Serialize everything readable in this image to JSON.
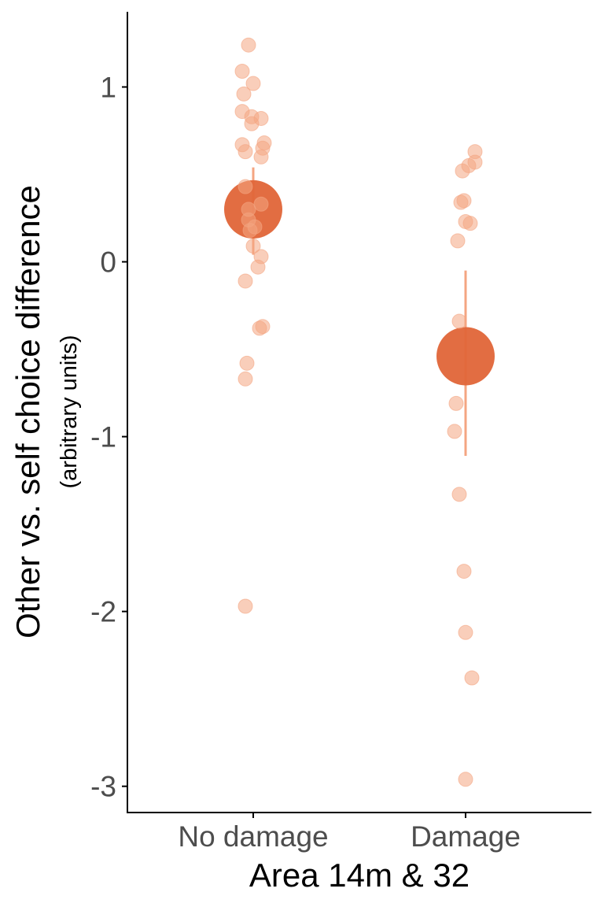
{
  "chart_data": {
    "type": "scatter",
    "xlabel": "Area 14m & 32",
    "ylabel": "Other vs. self choice difference",
    "ylabel_sub": "(arbitrary units)",
    "categories": [
      "No damage",
      "Damage"
    ],
    "ylim": [
      -3.15,
      1.43
    ],
    "yticks": [
      1,
      0,
      -1,
      -2,
      -3
    ],
    "ytick_labels": [
      "1",
      "0",
      "-1",
      "-2",
      "-3"
    ],
    "grid": false,
    "colors": {
      "points": "#f4a582",
      "mean": "#e06538",
      "errorbar": "#f4a582",
      "axis": "#000000"
    },
    "groups": [
      {
        "category": "No damage",
        "mean": 0.3,
        "ci": [
          0.04,
          0.54
        ],
        "points": [
          {
            "x": -0.03,
            "y": 1.24
          },
          {
            "x": -0.07,
            "y": 1.09
          },
          {
            "x": 0.0,
            "y": 1.02
          },
          {
            "x": -0.06,
            "y": 0.96
          },
          {
            "x": -0.07,
            "y": 0.86
          },
          {
            "x": -0.01,
            "y": 0.83
          },
          {
            "x": 0.05,
            "y": 0.82
          },
          {
            "x": -0.01,
            "y": 0.79
          },
          {
            "x": -0.07,
            "y": 0.67
          },
          {
            "x": 0.07,
            "y": 0.68
          },
          {
            "x": 0.06,
            "y": 0.65
          },
          {
            "x": -0.05,
            "y": 0.63
          },
          {
            "x": 0.05,
            "y": 0.6
          },
          {
            "x": -0.05,
            "y": 0.43
          },
          {
            "x": 0.05,
            "y": 0.33
          },
          {
            "x": -0.03,
            "y": 0.3
          },
          {
            "x": -0.03,
            "y": 0.24
          },
          {
            "x": -0.02,
            "y": 0.18
          },
          {
            "x": 0.01,
            "y": 0.2
          },
          {
            "x": 0.0,
            "y": 0.09
          },
          {
            "x": 0.05,
            "y": 0.03
          },
          {
            "x": 0.03,
            "y": -0.03
          },
          {
            "x": -0.05,
            "y": -0.11
          },
          {
            "x": 0.06,
            "y": -0.37
          },
          {
            "x": 0.04,
            "y": -0.38
          },
          {
            "x": -0.04,
            "y": -0.58
          },
          {
            "x": -0.05,
            "y": -0.67
          },
          {
            "x": -0.05,
            "y": -1.97
          }
        ]
      },
      {
        "category": "Damage",
        "mean": -0.54,
        "ci": [
          -1.11,
          -0.05
        ],
        "points": [
          {
            "x": 0.06,
            "y": 0.63
          },
          {
            "x": -0.02,
            "y": 0.52
          },
          {
            "x": 0.02,
            "y": 0.55
          },
          {
            "x": 0.06,
            "y": 0.57
          },
          {
            "x": -0.03,
            "y": 0.34
          },
          {
            "x": -0.01,
            "y": 0.35
          },
          {
            "x": 0.0,
            "y": 0.23
          },
          {
            "x": 0.03,
            "y": 0.22
          },
          {
            "x": -0.05,
            "y": 0.12
          },
          {
            "x": -0.04,
            "y": -0.34
          },
          {
            "x": -0.06,
            "y": -0.81
          },
          {
            "x": -0.07,
            "y": -0.97
          },
          {
            "x": -0.04,
            "y": -1.33
          },
          {
            "x": -0.01,
            "y": -1.77
          },
          {
            "x": 0.0,
            "y": -2.12
          },
          {
            "x": 0.04,
            "y": -2.38
          },
          {
            "x": 0.0,
            "y": -2.96
          }
        ]
      }
    ]
  }
}
